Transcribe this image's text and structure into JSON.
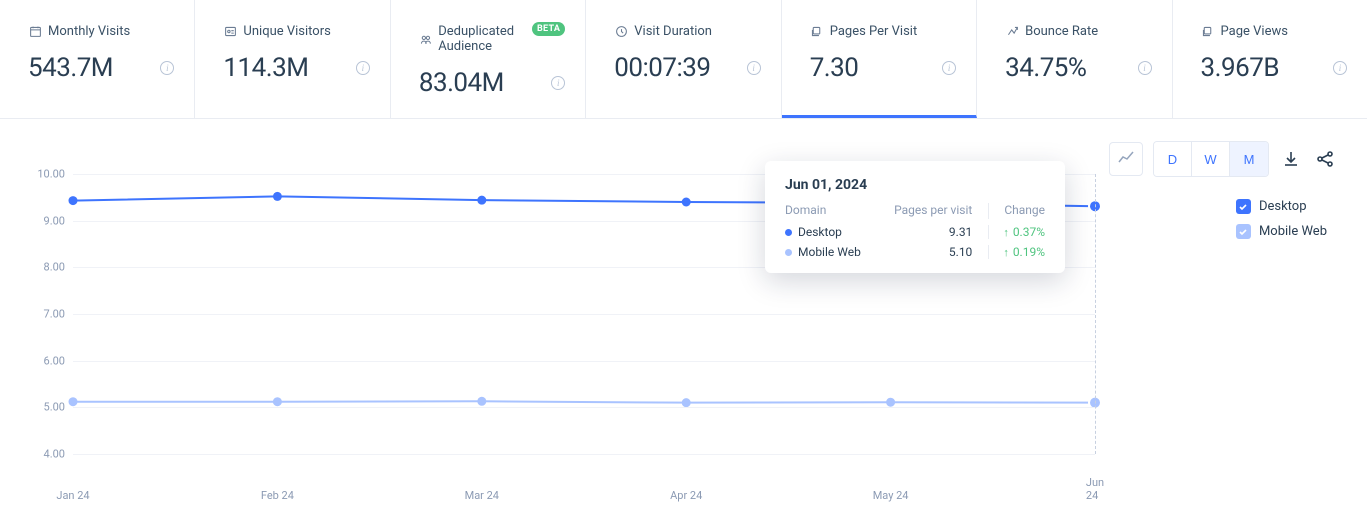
{
  "metrics": [
    {
      "key": "monthly_visits",
      "label": "Monthly Visits",
      "value": "543.7M",
      "icon": "calendar"
    },
    {
      "key": "unique_visitors",
      "label": "Unique Visitors",
      "value": "114.3M",
      "icon": "id-card"
    },
    {
      "key": "deduplicated_audience",
      "label": "Deduplicated Audience",
      "value": "83.04M",
      "icon": "people",
      "badge": "BETA"
    },
    {
      "key": "visit_duration",
      "label": "Visit Duration",
      "value": "00:07:39",
      "icon": "clock"
    },
    {
      "key": "pages_per_visit",
      "label": "Pages Per Visit",
      "value": "7.30",
      "icon": "layers",
      "active": true
    },
    {
      "key": "bounce_rate",
      "label": "Bounce Rate",
      "value": "34.75%",
      "icon": "bounce"
    },
    {
      "key": "page_views",
      "label": "Page Views",
      "value": "3.967B",
      "icon": "layers"
    }
  ],
  "chart": {
    "type": "line",
    "x_categories": [
      "Jan 24",
      "Feb 24",
      "Mar 24",
      "Apr 24",
      "May 24",
      "Jun 24"
    ],
    "ylim": [
      4.0,
      10.0
    ],
    "yticks": [
      4.0,
      5.0,
      6.0,
      7.0,
      8.0,
      9.0,
      10.0
    ],
    "ytick_labels": [
      "4.00",
      "5.00",
      "6.00",
      "7.00",
      "8.00",
      "9.00",
      "10.00"
    ],
    "grid_color": "#f0f2f7",
    "background_color": "#ffffff",
    "axis_label_color": "#8b9ab3",
    "axis_fontsize": 11,
    "line_width": 2,
    "marker_radius": 4.5,
    "highlight_marker_radius": 6,
    "highlight_stroke_width": 2,
    "hover_line_color": "#c7d0e0",
    "series": [
      {
        "name": "Desktop",
        "color": "#3e74fe",
        "values": [
          9.43,
          9.52,
          9.44,
          9.4,
          9.38,
          9.31
        ]
      },
      {
        "name": "Mobile Web",
        "color": "#a9c3ff",
        "values": [
          5.12,
          5.12,
          5.13,
          5.1,
          5.11,
          5.1
        ]
      }
    ],
    "hover_index": 5
  },
  "tooltip": {
    "date": "Jun 01, 2024",
    "domain_header": "Domain",
    "value_header": "Pages per visit",
    "change_header": "Change",
    "rows": [
      {
        "name": "Desktop",
        "value": "9.31",
        "change": "0.37%",
        "color": "#3e74fe"
      },
      {
        "name": "Mobile Web",
        "value": "5.10",
        "change": "0.19%",
        "color": "#a9c3ff"
      }
    ],
    "change_color": "#4fc47f"
  },
  "legend": {
    "items": [
      {
        "name": "Desktop",
        "color": "#3e74fe",
        "checked": true
      },
      {
        "name": "Mobile Web",
        "color": "#a9c3ff",
        "checked": true
      }
    ]
  },
  "toolbar": {
    "chart_type_icon": "line-chart-icon",
    "granularity": [
      {
        "label": "D",
        "active": false
      },
      {
        "label": "W",
        "active": false
      },
      {
        "label": "M",
        "active": true
      }
    ],
    "download_icon": "download-icon",
    "share_icon": "share-icon"
  }
}
